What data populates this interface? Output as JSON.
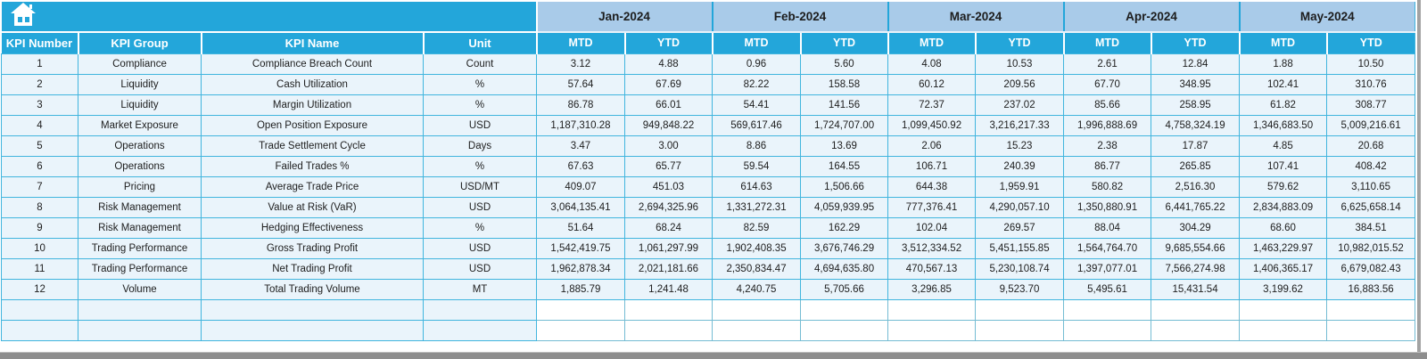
{
  "colors": {
    "accent": "#23a6da",
    "month_band": "#a9cbe9",
    "row_background": "#eaf4fb",
    "grid_border": "#41b5de",
    "bottom_bar": "#8e8e8e"
  },
  "icons": {
    "home": "home-icon"
  },
  "table": {
    "left_columns": [
      "KPI Number",
      "KPI Group",
      "KPI Name",
      "Unit"
    ],
    "months": [
      "Jan-2024",
      "Feb-2024",
      "Mar-2024",
      "Apr-2024",
      "May-2024"
    ],
    "sub_columns": [
      "MTD",
      "YTD"
    ],
    "empty_row_count": 2,
    "rows": [
      {
        "kpi_number": "1",
        "kpi_group": "Compliance",
        "kpi_name": "Compliance Breach Count",
        "unit": "Count",
        "values": [
          "3.12",
          "4.88",
          "0.96",
          "5.60",
          "4.08",
          "10.53",
          "2.61",
          "12.84",
          "1.88",
          "10.50"
        ]
      },
      {
        "kpi_number": "2",
        "kpi_group": "Liquidity",
        "kpi_name": "Cash Utilization",
        "unit": "%",
        "values": [
          "57.64",
          "67.69",
          "82.22",
          "158.58",
          "60.12",
          "209.56",
          "67.70",
          "348.95",
          "102.41",
          "310.76"
        ]
      },
      {
        "kpi_number": "3",
        "kpi_group": "Liquidity",
        "kpi_name": "Margin Utilization",
        "unit": "%",
        "values": [
          "86.78",
          "66.01",
          "54.41",
          "141.56",
          "72.37",
          "237.02",
          "85.66",
          "258.95",
          "61.82",
          "308.77"
        ]
      },
      {
        "kpi_number": "4",
        "kpi_group": "Market Exposure",
        "kpi_name": "Open Position Exposure",
        "unit": "USD",
        "values": [
          "1,187,310.28",
          "949,848.22",
          "569,617.46",
          "1,724,707.00",
          "1,099,450.92",
          "3,216,217.33",
          "1,996,888.69",
          "4,758,324.19",
          "1,346,683.50",
          "5,009,216.61"
        ]
      },
      {
        "kpi_number": "5",
        "kpi_group": "Operations",
        "kpi_name": "Trade Settlement Cycle",
        "unit": "Days",
        "values": [
          "3.47",
          "3.00",
          "8.86",
          "13.69",
          "2.06",
          "15.23",
          "2.38",
          "17.87",
          "4.85",
          "20.68"
        ]
      },
      {
        "kpi_number": "6",
        "kpi_group": "Operations",
        "kpi_name": "Failed Trades %",
        "unit": "%",
        "values": [
          "67.63",
          "65.77",
          "59.54",
          "164.55",
          "106.71",
          "240.39",
          "86.77",
          "265.85",
          "107.41",
          "408.42"
        ]
      },
      {
        "kpi_number": "7",
        "kpi_group": "Pricing",
        "kpi_name": "Average Trade Price",
        "unit": "USD/MT",
        "values": [
          "409.07",
          "451.03",
          "614.63",
          "1,506.66",
          "644.38",
          "1,959.91",
          "580.82",
          "2,516.30",
          "579.62",
          "3,110.65"
        ]
      },
      {
        "kpi_number": "8",
        "kpi_group": "Risk Management",
        "kpi_name": "Value at Risk (VaR)",
        "unit": "USD",
        "values": [
          "3,064,135.41",
          "2,694,325.96",
          "1,331,272.31",
          "4,059,939.95",
          "777,376.41",
          "4,290,057.10",
          "1,350,880.91",
          "6,441,765.22",
          "2,834,883.09",
          "6,625,658.14"
        ]
      },
      {
        "kpi_number": "9",
        "kpi_group": "Risk Management",
        "kpi_name": "Hedging Effectiveness",
        "unit": "%",
        "values": [
          "51.64",
          "68.24",
          "82.59",
          "162.29",
          "102.04",
          "269.57",
          "88.04",
          "304.29",
          "68.60",
          "384.51"
        ]
      },
      {
        "kpi_number": "10",
        "kpi_group": "Trading Performance",
        "kpi_name": "Gross Trading Profit",
        "unit": "USD",
        "values": [
          "1,542,419.75",
          "1,061,297.99",
          "1,902,408.35",
          "3,676,746.29",
          "3,512,334.52",
          "5,451,155.85",
          "1,564,764.70",
          "9,685,554.66",
          "1,463,229.97",
          "10,982,015.52"
        ]
      },
      {
        "kpi_number": "11",
        "kpi_group": "Trading Performance",
        "kpi_name": "Net Trading Profit",
        "unit": "USD",
        "values": [
          "1,962,878.34",
          "2,021,181.66",
          "2,350,834.47",
          "4,694,635.80",
          "470,567.13",
          "5,230,108.74",
          "1,397,077.01",
          "7,566,274.98",
          "1,406,365.17",
          "6,679,082.43"
        ]
      },
      {
        "kpi_number": "12",
        "kpi_group": "Volume",
        "kpi_name": "Total Trading Volume",
        "unit": "MT",
        "values": [
          "1,885.79",
          "1,241.48",
          "4,240.75",
          "5,705.66",
          "3,296.85",
          "9,523.70",
          "5,495.61",
          "15,431.54",
          "3,199.62",
          "16,883.56"
        ]
      }
    ]
  }
}
